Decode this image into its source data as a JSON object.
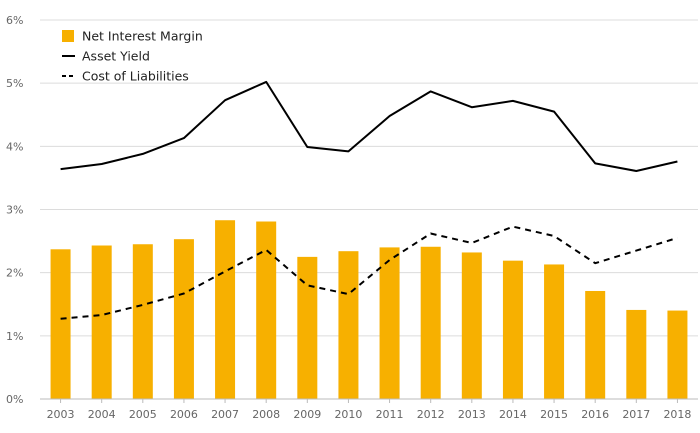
{
  "chart_data": {
    "type": "bar",
    "title": "",
    "xlabel": "",
    "ylabel": "",
    "ylim": [
      0,
      6
    ],
    "yticks": [
      "0%",
      "1%",
      "2%",
      "3%",
      "4%",
      "5%",
      "6%"
    ],
    "grid": true,
    "legend_position": "top-left",
    "categories": [
      "2003",
      "2004",
      "2005",
      "2006",
      "2007",
      "2008",
      "2009",
      "2010",
      "2011",
      "2012",
      "2013",
      "2014",
      "2015",
      "2016",
      "2017",
      "2018"
    ],
    "series": [
      {
        "name": "Net Interest Margin",
        "kind": "bar",
        "color": "#f7b000",
        "values": [
          2.37,
          2.43,
          2.45,
          2.53,
          2.83,
          2.81,
          2.25,
          2.34,
          2.4,
          2.41,
          2.32,
          2.19,
          2.13,
          1.71,
          1.41,
          1.4
        ]
      },
      {
        "name": "Asset Yield",
        "kind": "line",
        "style": "solid",
        "color": "#000000",
        "values": [
          3.64,
          3.72,
          3.88,
          4.13,
          4.73,
          5.02,
          3.99,
          3.92,
          4.48,
          4.87,
          4.62,
          4.72,
          4.55,
          3.73,
          3.61,
          3.76
        ]
      },
      {
        "name": "Cost of Liabilities",
        "kind": "line",
        "style": "dashed",
        "color": "#000000",
        "values": [
          1.27,
          1.33,
          1.49,
          1.67,
          2.02,
          2.36,
          1.8,
          1.66,
          2.2,
          2.62,
          2.47,
          2.73,
          2.58,
          2.15,
          2.35,
          2.55
        ]
      }
    ]
  }
}
